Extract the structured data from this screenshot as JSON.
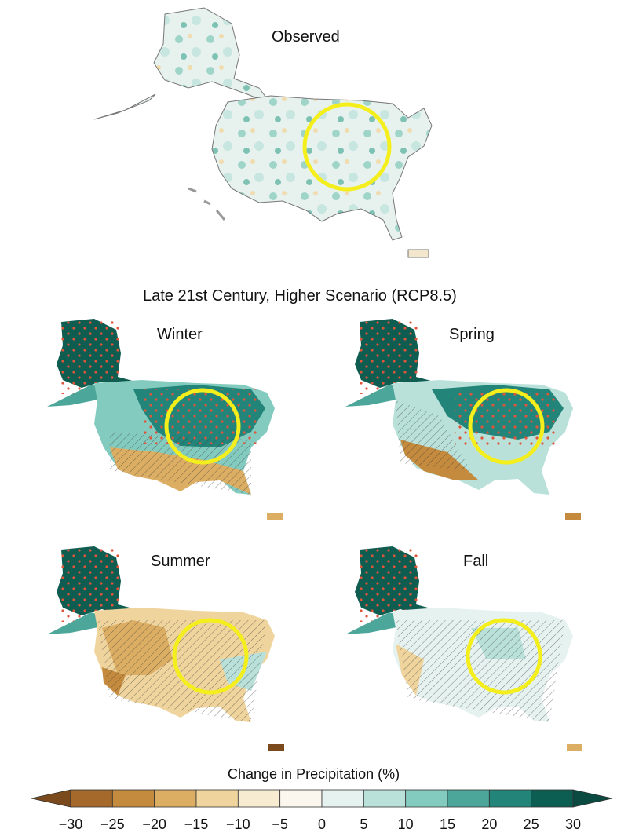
{
  "observed": {
    "title": "Observed"
  },
  "projection": {
    "heading": "Late 21st Century, Higher Scenario (RCP8.5)",
    "panels": [
      {
        "season": "Winter"
      },
      {
        "season": "Spring"
      },
      {
        "season": "Summer"
      },
      {
        "season": "Fall"
      }
    ]
  },
  "legend": {
    "title": "Change in Precipitation (%)",
    "ticks": [
      "−30",
      "−25",
      "−20",
      "−15",
      "−10",
      "−5",
      "0",
      "5",
      "10",
      "15",
      "20",
      "25",
      "30"
    ],
    "colors": [
      "#7a4a1c",
      "#a56a2b",
      "#c48b3e",
      "#dcae63",
      "#efd49d",
      "#f7ecd2",
      "#fbf7ee",
      "#e6f2f0",
      "#b9e1da",
      "#84cbbf",
      "#4ca79a",
      "#23857a",
      "#0d5e52",
      "#0b4a40"
    ]
  },
  "highlight_color": "#f4ef1c",
  "stipple_color": "#e0553a"
}
